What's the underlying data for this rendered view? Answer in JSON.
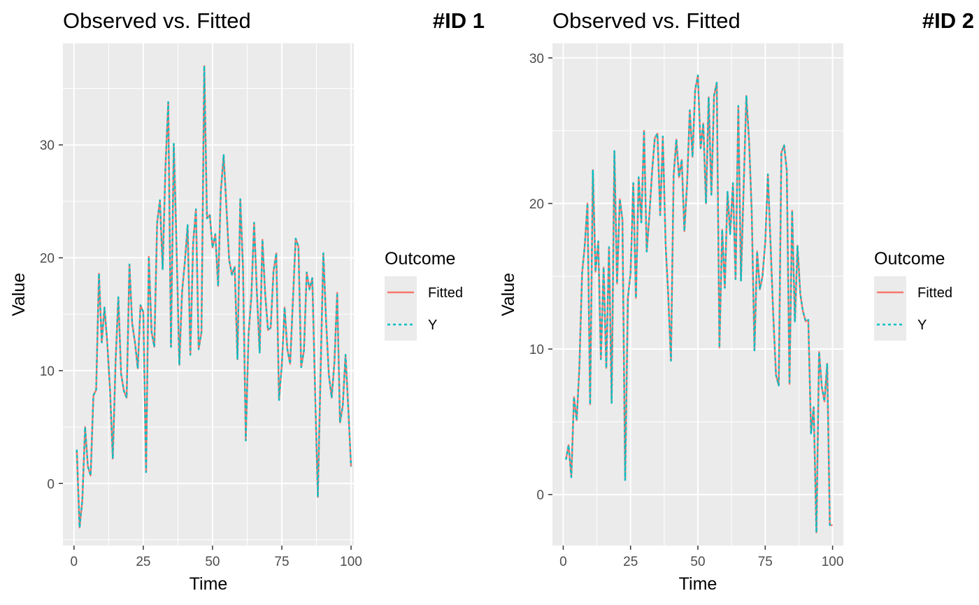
{
  "colors": {
    "fitted": "#F8766D",
    "y": "#00BFC4",
    "panel_bg": "#EBEBEB",
    "grid": "#FFFFFF",
    "axis_text": "#4D4D4D",
    "text": "#000000"
  },
  "legend_title": "Outcome",
  "chart_data": [
    {
      "type": "line",
      "title": "Observed vs. Fitted",
      "tag": "#ID 1",
      "xlabel": "Time",
      "ylabel": "Value",
      "xlim": [
        -4,
        101
      ],
      "ylim": [
        -5.5,
        39
      ],
      "xticks": [
        0,
        25,
        50,
        75,
        100
      ],
      "yticks": [
        0,
        10,
        20,
        30
      ],
      "grid": true,
      "legend_position": "right",
      "series": [
        {
          "name": "Fitted",
          "key": "fitted",
          "line": "solid"
        },
        {
          "name": "Y",
          "key": "y",
          "line": "dashed"
        }
      ],
      "x": [
        1,
        2,
        3,
        4,
        5,
        6,
        7,
        8,
        9,
        10,
        11,
        12,
        13,
        14,
        15,
        16,
        17,
        18,
        19,
        20,
        21,
        22,
        23,
        24,
        25,
        26,
        27,
        28,
        29,
        30,
        31,
        32,
        33,
        34,
        35,
        36,
        37,
        38,
        39,
        40,
        41,
        42,
        43,
        44,
        45,
        46,
        47,
        48,
        49,
        50,
        51,
        52,
        53,
        54,
        55,
        56,
        57,
        58,
        59,
        60,
        61,
        62,
        63,
        64,
        65,
        66,
        67,
        68,
        69,
        70,
        71,
        72,
        73,
        74,
        75,
        76,
        77,
        78,
        79,
        80,
        81,
        82,
        83,
        84,
        85,
        86,
        87,
        88,
        89,
        90,
        91,
        92,
        93,
        94,
        95,
        96,
        97,
        98,
        99,
        100
      ],
      "y": [
        3,
        -3.9,
        -1.5,
        5,
        1.5,
        0.7,
        7.8,
        8.3,
        18.6,
        12.5,
        15.6,
        12.5,
        8.2,
        2.2,
        10.8,
        16.5,
        9.7,
        8.2,
        7.6,
        19.4,
        14.2,
        12.5,
        10.2,
        15.8,
        15.2,
        1,
        20.1,
        13.4,
        12.1,
        23.1,
        25.1,
        19,
        28,
        33.8,
        12.1,
        30.1,
        21.3,
        10.5,
        17,
        19.6,
        22.9,
        11.4,
        21.3,
        24.3,
        11.9,
        13.4,
        37,
        23.5,
        23.8,
        20.9,
        22.1,
        17.5,
        25.9,
        29.1,
        24.5,
        19.8,
        18.5,
        19.2,
        11,
        25.2,
        19.1,
        3.8,
        13.2,
        16.5,
        23.1,
        17,
        11.6,
        21.6,
        16.8,
        13.6,
        13.8,
        18.8,
        20.4,
        7.4,
        10.5,
        15.6,
        11.9,
        10.6,
        16.1,
        21.7,
        21,
        10.3,
        11.8,
        18.7,
        17.2,
        18.2,
        8.5,
        -1.2,
        10,
        20.4,
        14.3,
        9.6,
        7.6,
        10.8,
        16.9,
        5.4,
        6.9,
        11.4,
        6.6,
        1.5
      ]
    },
    {
      "type": "line",
      "title": "Observed vs. Fitted",
      "tag": "#ID 2",
      "xlabel": "Time",
      "ylabel": "Value",
      "xlim": [
        -4,
        104
      ],
      "ylim": [
        -3.5,
        31
      ],
      "xticks": [
        0,
        25,
        50,
        75,
        100
      ],
      "yticks": [
        0,
        10,
        20,
        30
      ],
      "grid": true,
      "legend_position": "right",
      "series": [
        {
          "name": "Fitted",
          "key": "fitted",
          "line": "solid"
        },
        {
          "name": "Y",
          "key": "y",
          "line": "dashed"
        }
      ],
      "x": [
        1,
        2,
        3,
        4,
        5,
        6,
        7,
        8,
        9,
        10,
        11,
        12,
        13,
        14,
        15,
        16,
        17,
        18,
        19,
        20,
        21,
        22,
        23,
        24,
        25,
        26,
        27,
        28,
        29,
        30,
        31,
        32,
        33,
        34,
        35,
        36,
        37,
        38,
        39,
        40,
        41,
        42,
        43,
        44,
        45,
        46,
        47,
        48,
        49,
        50,
        51,
        52,
        53,
        54,
        55,
        56,
        57,
        58,
        59,
        60,
        61,
        62,
        63,
        64,
        65,
        66,
        67,
        68,
        69,
        70,
        71,
        72,
        73,
        74,
        75,
        76,
        77,
        78,
        79,
        80,
        81,
        82,
        83,
        84,
        85,
        86,
        87,
        88,
        89,
        90,
        91,
        92,
        93,
        94,
        95,
        96,
        97,
        98,
        99,
        100
      ],
      "y": [
        2.4,
        3.4,
        1.2,
        6.7,
        5.1,
        8.7,
        15.2,
        17.1,
        20,
        6.2,
        22.3,
        15.3,
        17.4,
        9.3,
        15.6,
        8.7,
        17,
        6.3,
        23.6,
        14.5,
        20.3,
        18.9,
        1,
        13.5,
        15.2,
        21.4,
        13.5,
        21.8,
        18.7,
        25,
        16.7,
        19.2,
        22.2,
        24.5,
        24.8,
        19.2,
        24.6,
        17.2,
        13.7,
        9.2,
        21.9,
        24.4,
        21.8,
        23,
        18.1,
        21.4,
        26.4,
        23.2,
        27.8,
        28.8,
        23.8,
        25.5,
        20,
        27.3,
        20.6,
        27.4,
        28.3,
        10.1,
        18.2,
        14.2,
        20.8,
        17.9,
        21.4,
        14.8,
        26.7,
        14.7,
        21.2,
        27.4,
        24.3,
        19.4,
        9.9,
        16.7,
        14.1,
        15,
        17.3,
        22,
        17.1,
        12.2,
        8.2,
        7.5,
        23.5,
        24,
        22.3,
        7.6,
        19.5,
        11.9,
        17.1,
        13.8,
        12.6,
        11.9,
        12,
        4.2,
        6,
        -2.6,
        9.8,
        7.4,
        6.4,
        9,
        -2.1,
        -2.1
      ]
    }
  ]
}
